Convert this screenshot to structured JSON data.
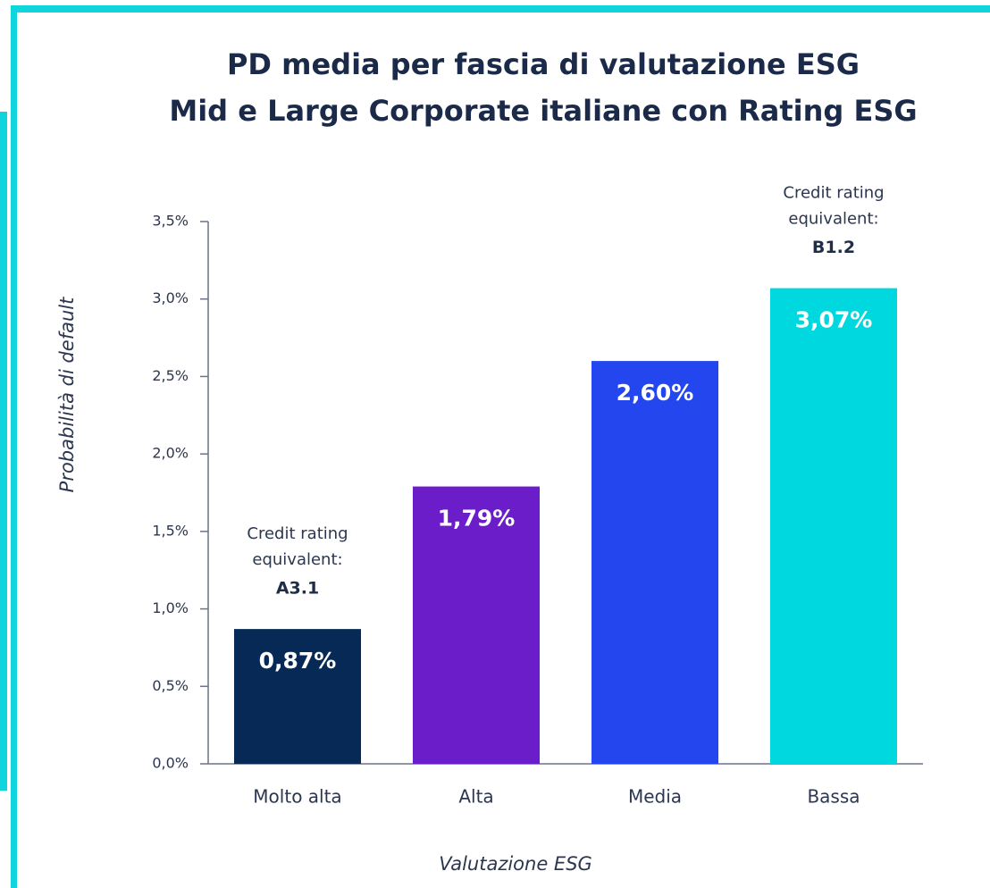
{
  "chart_data": {
    "type": "bar",
    "title": [
      "PD media per fascia di valutazione ESG",
      "Mid e Large Corporate italiane con Rating ESG"
    ],
    "categories": [
      "Molto alta",
      "Alta",
      "Media",
      "Bassa"
    ],
    "values": [
      0.87,
      1.79,
      2.6,
      3.07
    ],
    "value_labels": [
      "0,87%",
      "1,79%",
      "2,60%",
      "3,07%"
    ],
    "colors": [
      "#062a55",
      "#6a1dc8",
      "#2346ef",
      "#00d8e0"
    ],
    "ylim": [
      0,
      3.5
    ],
    "yticks": [
      {
        "value": 0,
        "label": "0,0%"
      },
      {
        "value": 0.5,
        "label": "0,5%"
      },
      {
        "value": 1,
        "label": "1,0%"
      },
      {
        "value": 1.5,
        "label": "1,5%"
      },
      {
        "value": 2,
        "label": "2,0%"
      },
      {
        "value": 2.5,
        "label": "2,5%"
      },
      {
        "value": 3,
        "label": "3,0%"
      },
      {
        "value": 3.5,
        "label": "3,5%"
      }
    ],
    "ylabel": "Probabilità di default",
    "xlabel": "Valutazione ESG",
    "annotations": [
      {
        "category": "Molto alta",
        "lines": [
          "Credit rating",
          "equivalent:",
          "A3.1"
        ]
      },
      {
        "category": "Bassa",
        "lines": [
          "Credit rating",
          "equivalent:",
          "B1.2"
        ]
      }
    ]
  }
}
